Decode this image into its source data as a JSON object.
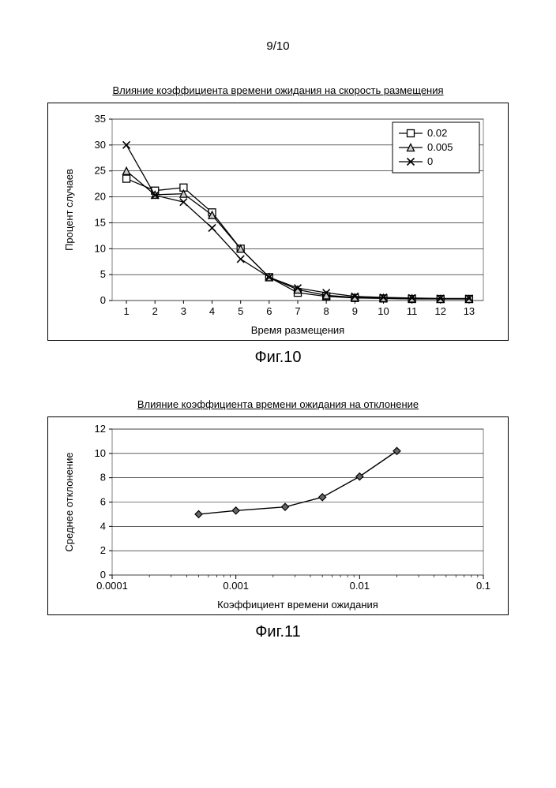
{
  "page_number": "9/10",
  "chart1": {
    "type": "line",
    "title": "Влияние коэффициента времени ожидания на скорость размещения",
    "fig_label": "Фиг.10",
    "xlabel": "Время размещения",
    "ylabel": "Процент случаев",
    "label_fontsize": 13,
    "title_fontsize": 13,
    "background_color": "#ffffff",
    "grid_color": "#000000",
    "plot_border_color": "#808080",
    "xlim": [
      0.5,
      13.5
    ],
    "ylim": [
      0,
      35
    ],
    "xticks": [
      1,
      2,
      3,
      4,
      5,
      6,
      7,
      8,
      9,
      10,
      11,
      12,
      13
    ],
    "yticks": [
      0,
      5,
      10,
      15,
      20,
      25,
      30,
      35
    ],
    "legend_position": "top-right",
    "series": [
      {
        "name": "0.02",
        "marker": "square-open",
        "color": "#000000",
        "fill": "#ffffff",
        "x": [
          1,
          2,
          3,
          4,
          5,
          6,
          7,
          8,
          9,
          10,
          11,
          12,
          13
        ],
        "y": [
          23.5,
          21.2,
          21.8,
          17.0,
          10.0,
          4.5,
          1.5,
          0.8,
          0.5,
          0.4,
          0.3,
          0.3,
          0.3
        ]
      },
      {
        "name": "0.005",
        "marker": "triangle",
        "color": "#000000",
        "fill": "#cccccc",
        "x": [
          1,
          2,
          3,
          4,
          5,
          6,
          7,
          8,
          9,
          10,
          11,
          12,
          13
        ],
        "y": [
          25.0,
          20.4,
          20.6,
          16.5,
          10.0,
          4.5,
          2.1,
          1.0,
          0.6,
          0.5,
          0.4,
          0.3,
          0.3
        ]
      },
      {
        "name": "0",
        "marker": "x",
        "color": "#000000",
        "fill": "none",
        "x": [
          1,
          2,
          3,
          4,
          5,
          6,
          7,
          8,
          9,
          10,
          11,
          12,
          13
        ],
        "y": [
          30.0,
          20.3,
          19.0,
          14.0,
          8.0,
          4.5,
          2.4,
          1.5,
          0.8,
          0.6,
          0.5,
          0.4,
          0.4
        ]
      }
    ]
  },
  "chart2": {
    "type": "line",
    "title": "Влияние коэффициента времени ожидания на отклонение",
    "fig_label": "Фиг.11",
    "xlabel": "Коэффициент времени ожидания",
    "ylabel": "Среднее отклонение",
    "label_fontsize": 13,
    "title_fontsize": 13,
    "background_color": "#ffffff",
    "grid_color": "#000000",
    "plot_border_color": "#808080",
    "xscale": "log",
    "xlim": [
      0.0001,
      0.1
    ],
    "ylim": [
      0,
      12
    ],
    "xticks": [
      0.0001,
      0.001,
      0.01,
      0.1
    ],
    "xtick_labels": [
      "0.0001",
      "0.001",
      "0.01",
      "0.1"
    ],
    "yticks": [
      0,
      2,
      4,
      6,
      8,
      10,
      12
    ],
    "series": [
      {
        "name": "dev",
        "marker": "diamond",
        "color": "#000000",
        "fill": "#666666",
        "x": [
          0.0005,
          0.001,
          0.0025,
          0.005,
          0.01,
          0.02
        ],
        "y": [
          5.0,
          5.3,
          5.6,
          6.4,
          8.1,
          10.2
        ]
      }
    ]
  }
}
